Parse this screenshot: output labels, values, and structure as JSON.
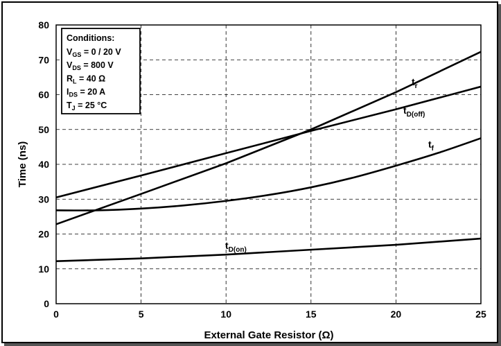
{
  "chart_data": {
    "type": "line",
    "xlabel": "External Gate Resistor (Ω)",
    "ylabel": "Time (ns)",
    "xlim": [
      0,
      25
    ],
    "ylim": [
      0,
      80
    ],
    "x_ticks": [
      0,
      5,
      10,
      15,
      20,
      25
    ],
    "y_ticks": [
      0,
      10,
      20,
      30,
      40,
      50,
      60,
      70,
      80
    ],
    "grid": true,
    "series": [
      {
        "name": "tD(off)",
        "label_main": "t",
        "label_sub": "D(off)",
        "x": [
          0,
          5,
          10,
          15,
          20,
          25
        ],
        "y": [
          22.8,
          31.5,
          40.3,
          50.0,
          60.7,
          72.3
        ]
      },
      {
        "name": "tr",
        "label_main": "t",
        "label_sub": "r",
        "x": [
          0,
          5,
          10,
          15,
          20,
          25
        ],
        "y": [
          30.5,
          36.8,
          43.2,
          49.6,
          55.8,
          62.3
        ]
      },
      {
        "name": "tf",
        "label_main": "t",
        "label_sub": "f",
        "x": [
          0,
          2.5,
          5,
          7.5,
          10,
          12.5,
          15,
          17.5,
          20,
          22.5,
          25
        ],
        "y": [
          26.8,
          26.8,
          27.3,
          28.2,
          29.5,
          31.2,
          33.4,
          36.2,
          39.6,
          43.3,
          47.5
        ]
      },
      {
        "name": "tD(on)",
        "label_main": "t",
        "label_sub": "D(on)",
        "x": [
          0,
          5,
          10,
          15,
          20,
          25
        ],
        "y": [
          12.2,
          13.0,
          14.1,
          15.5,
          16.9,
          18.7
        ]
      }
    ]
  },
  "conditions": {
    "title": "Conditions:",
    "items": [
      {
        "main": "V",
        "sub": "GS",
        "rest": " = 0 / 20 V"
      },
      {
        "main": "V",
        "sub": "DS",
        "rest": " = 800 V"
      },
      {
        "main": "R",
        "sub": "L",
        "rest": " = 40 Ω"
      },
      {
        "main": "I",
        "sub": "DS",
        "rest": " = 20 A"
      },
      {
        "main": "T",
        "sub": "J",
        "rest": " = 25 °C"
      }
    ]
  },
  "colors": {
    "line": "#000000",
    "grid": "#000000",
    "background": "#ffffff"
  }
}
